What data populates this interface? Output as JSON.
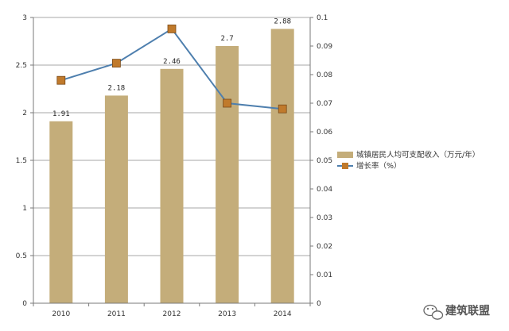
{
  "chart_data": {
    "type": "bar",
    "categories": [
      "2010",
      "2011",
      "2012",
      "2013",
      "2014"
    ],
    "series": [
      {
        "name": "城镇居民人均可支配收入（万元/年）",
        "type": "bar",
        "axis": "left",
        "values": [
          1.91,
          2.18,
          2.46,
          2.7,
          2.88
        ],
        "labels": [
          "1.91",
          "2.18",
          "2.46",
          "2.7",
          "2.88"
        ],
        "color": "#c4ad7a"
      },
      {
        "name": "增长率（%）",
        "type": "line",
        "axis": "right",
        "values": [
          0.078,
          0.084,
          0.096,
          0.07,
          0.068
        ],
        "line_color": "#4e7fae",
        "marker_color": "#c07a2c"
      }
    ],
    "y_left": {
      "lim": [
        0,
        3
      ],
      "ticks": [
        0,
        0.5,
        1,
        1.5,
        2,
        2.5,
        3
      ],
      "tick_labels": [
        "0",
        "0.5",
        "1",
        "1.5",
        "2",
        "2.5",
        "3"
      ]
    },
    "y_right": {
      "lim": [
        0,
        0.1
      ],
      "ticks": [
        0,
        0.01,
        0.02,
        0.03,
        0.04,
        0.05,
        0.06,
        0.07,
        0.08,
        0.09,
        0.1
      ],
      "tick_labels": [
        "0",
        "0.01",
        "0.02",
        "0.03",
        "0.04",
        "0.05",
        "0.06",
        "0.07",
        "0.08",
        "0.09",
        "0.1"
      ]
    },
    "grid": true,
    "legend": "right"
  },
  "watermark": {
    "text": "建筑联盟",
    "icon": "wechat-icon"
  }
}
